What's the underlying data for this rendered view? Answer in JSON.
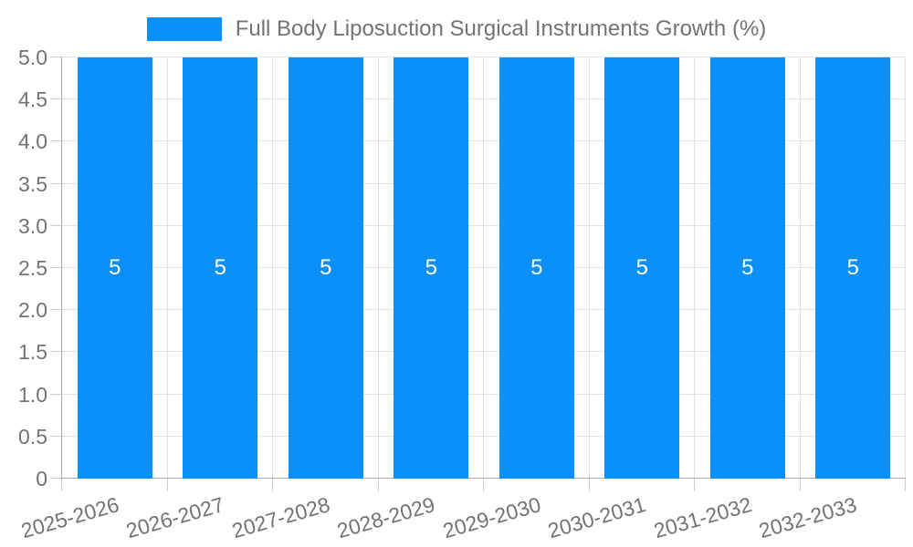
{
  "chart_data": {
    "type": "bar",
    "title": "Full Body Liposuction Surgical Instruments Growth (%)",
    "categories": [
      "2025-2026",
      "2026-2027",
      "2027-2028",
      "2028-2029",
      "2029-2030",
      "2030-2031",
      "2031-2032",
      "2032-2033"
    ],
    "series": [
      {
        "name": "Full Body Liposuction Surgical Instruments Growth (%)",
        "values": [
          5,
          5,
          5,
          5,
          5,
          5,
          5,
          5
        ]
      }
    ],
    "bar_value_labels": [
      "5",
      "5",
      "5",
      "5",
      "5",
      "5",
      "5",
      "5"
    ],
    "xlabel": "",
    "ylabel": "",
    "ylim": [
      0,
      5
    ],
    "y_tick_step": 0.5,
    "y_tick_labels": [
      "0",
      "0.5",
      "1.0",
      "1.5",
      "2.0",
      "2.5",
      "3.0",
      "3.5",
      "4.0",
      "4.5",
      "5.0"
    ],
    "grid": "on",
    "legend_position": "top-center",
    "x_label_rotation_deg": -16,
    "colors": {
      "bar": "#0A90F8",
      "grid": "#e2e2e2",
      "axis": "#aaaaaa",
      "tick": "#cccccc",
      "label_text": "#737373",
      "bar_label_text": "#ffffff"
    }
  }
}
